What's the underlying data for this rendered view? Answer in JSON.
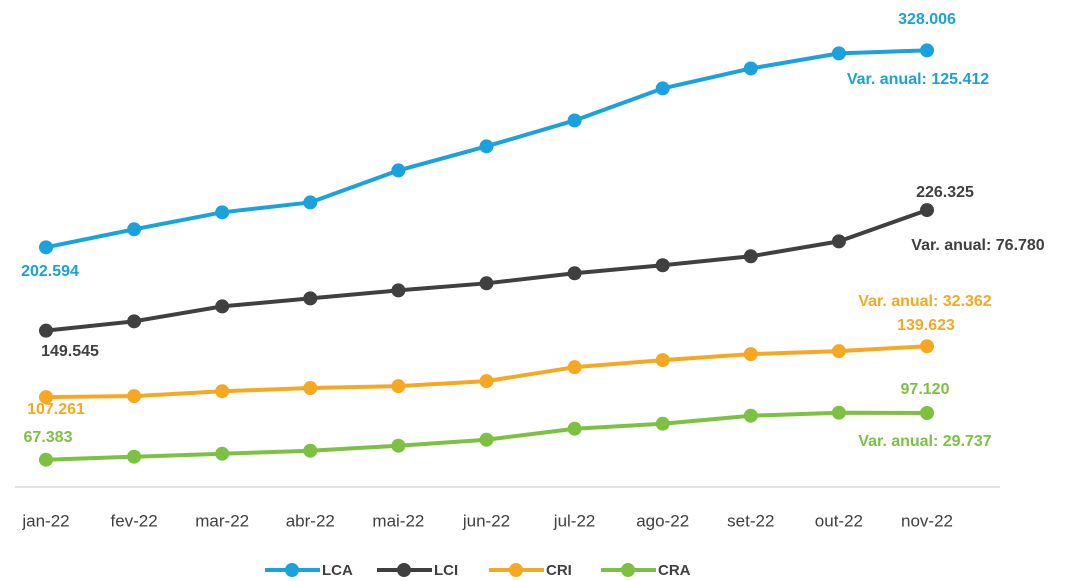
{
  "chart_data": {
    "type": "line",
    "categories": [
      "jan-22",
      "fev-22",
      "mar-22",
      "abr-22",
      "mai-22",
      "jun-22",
      "jul-22",
      "ago-22",
      "set-22",
      "out-22",
      "nov-22"
    ],
    "ylim": [
      50,
      355
    ],
    "series": [
      {
        "name": "LCA",
        "color": "#1ba1dc",
        "values": [
          202.594,
          214.1,
          224.9,
          231.2,
          251.6,
          266.9,
          283.4,
          303.8,
          316.5,
          326.1,
          328.006
        ],
        "value_labels": [
          "202.594",
          null,
          null,
          null,
          null,
          null,
          null,
          null,
          null,
          null,
          "328.006"
        ],
        "annotation": "Var. anual: 125.412"
      },
      {
        "name": "LCI",
        "color": "#404040",
        "values": [
          149.545,
          155.5,
          165.0,
          170.1,
          175.2,
          179.7,
          186.1,
          191.2,
          196.9,
          206.4,
          226.325
        ],
        "value_labels": [
          "149.545",
          null,
          null,
          null,
          null,
          null,
          null,
          null,
          null,
          null,
          "226.325"
        ],
        "annotation": "Var. anual: 76.780"
      },
      {
        "name": "CRI",
        "color": "#f7a823",
        "values": [
          107.261,
          107.9,
          111.0,
          113.0,
          114.2,
          117.4,
          126.3,
          130.8,
          134.6,
          136.5,
          139.623
        ],
        "value_labels": [
          "107.261",
          null,
          null,
          null,
          null,
          null,
          null,
          null,
          null,
          null,
          "139.623"
        ],
        "annotation": "Var. anual: 32.362"
      },
      {
        "name": "CRA",
        "color": "#7dc142",
        "values": [
          67.383,
          69.3,
          71.2,
          73.1,
          76.3,
          80.1,
          87.1,
          90.3,
          95.4,
          97.3,
          97.12
        ],
        "value_labels": [
          "67.383",
          null,
          null,
          null,
          null,
          null,
          null,
          null,
          null,
          null,
          "97.120"
        ],
        "annotation": "Var. anual: 29.737"
      }
    ]
  }
}
